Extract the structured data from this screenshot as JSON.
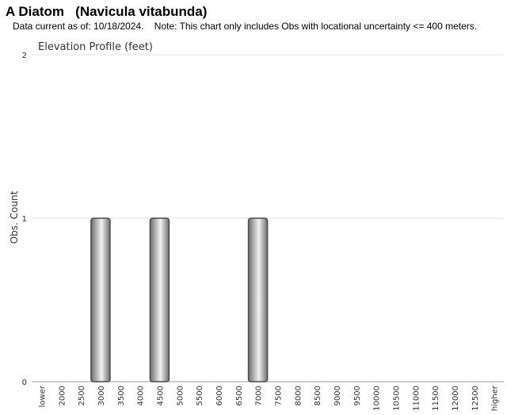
{
  "header": {
    "title": "A Diatom   (Navicula vitabunda)",
    "subtitle": "Data current as of: 10/18/2024.    Note: This chart only includes Obs with locational uncertainty <= 400 meters."
  },
  "chart_data": {
    "type": "bar",
    "title": "Elevation Profile (feet)",
    "xlabel": "",
    "ylabel": "Obs. Count",
    "ylim": [
      0,
      2
    ],
    "yticks": [
      "0",
      "1",
      "2"
    ],
    "grid": true,
    "legend": "none",
    "categories": [
      "lower",
      "2000",
      "2500",
      "3000",
      "3500",
      "4000",
      "4500",
      "5000",
      "5500",
      "6000",
      "6500",
      "7000",
      "7500",
      "8000",
      "8500",
      "9000",
      "9500",
      "10000",
      "10500",
      "11000",
      "11500",
      "12000",
      "12500",
      "higher"
    ],
    "values": [
      0,
      0,
      0,
      1,
      0,
      0,
      1,
      0,
      0,
      0,
      0,
      1,
      0,
      0,
      0,
      0,
      0,
      0,
      0,
      0,
      0,
      0,
      0,
      0
    ],
    "colors": {
      "bar_dark": "#6e6e6e",
      "bar_light": "#f2f2f2",
      "bar_stroke": "#4a4a4a",
      "grid": "#e3e3e3"
    }
  }
}
